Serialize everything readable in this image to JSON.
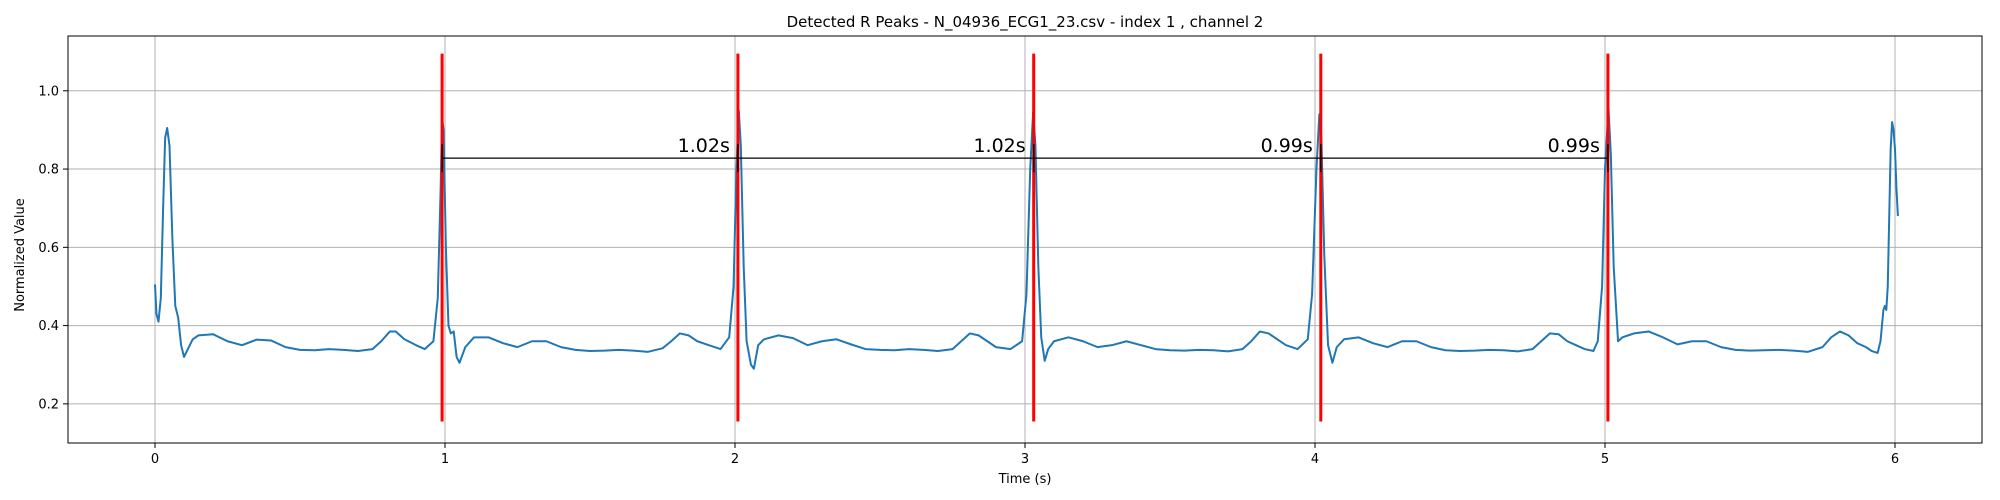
{
  "chart_data": {
    "type": "line",
    "title": "Detected R Peaks - N_04936_ECG1_23.csv - index 1 , channel 2",
    "xlabel": "Time (s)",
    "ylabel": "Normalized Value",
    "xlim": [
      -0.3,
      6.3
    ],
    "ylim": [
      0.1,
      1.14
    ],
    "xticks": [
      0,
      1,
      2,
      3,
      4,
      5,
      6
    ],
    "xtick_labels": [
      "0",
      "1",
      "2",
      "3",
      "4",
      "5",
      "6"
    ],
    "yticks": [
      0.2,
      0.4,
      0.6,
      0.8,
      1.0
    ],
    "ytick_labels": [
      "0.2",
      "0.4",
      "0.6",
      "0.8",
      "1.0"
    ],
    "grid": true,
    "colors": {
      "signal": "#1f77b4",
      "peak_marker": "#ff0000",
      "interval_line": "#000000",
      "grid": "#b0b0b0"
    },
    "r_peaks": [
      0.99,
      2.01,
      3.03,
      4.02,
      5.01
    ],
    "peak_marker_range": [
      0.155,
      1.095
    ],
    "rr_interval_y": 0.828,
    "rr_intervals": [
      {
        "start": 0.99,
        "end": 2.01,
        "label": "1.02s"
      },
      {
        "start": 2.01,
        "end": 3.03,
        "label": "1.02s"
      },
      {
        "start": 3.03,
        "end": 4.02,
        "label": "0.99s"
      },
      {
        "start": 4.02,
        "end": 5.01,
        "label": "0.99s"
      }
    ],
    "series": [
      {
        "points": [
          [
            0.0,
            0.505
          ],
          [
            0.005,
            0.43
          ],
          [
            0.012,
            0.41
          ],
          [
            0.02,
            0.47
          ],
          [
            0.028,
            0.7
          ],
          [
            0.035,
            0.88
          ],
          [
            0.042,
            0.905
          ],
          [
            0.05,
            0.86
          ],
          [
            0.06,
            0.62
          ],
          [
            0.07,
            0.45
          ],
          [
            0.08,
            0.42
          ],
          [
            0.09,
            0.35
          ],
          [
            0.1,
            0.32
          ],
          [
            0.11,
            0.335
          ],
          [
            0.13,
            0.365
          ],
          [
            0.15,
            0.375
          ],
          [
            0.2,
            0.378
          ],
          [
            0.25,
            0.36
          ],
          [
            0.3,
            0.35
          ],
          [
            0.35,
            0.364
          ],
          [
            0.4,
            0.362
          ],
          [
            0.45,
            0.345
          ],
          [
            0.5,
            0.338
          ],
          [
            0.55,
            0.337
          ],
          [
            0.6,
            0.34
          ],
          [
            0.65,
            0.338
          ],
          [
            0.7,
            0.335
          ],
          [
            0.75,
            0.34
          ],
          [
            0.78,
            0.36
          ],
          [
            0.81,
            0.385
          ],
          [
            0.83,
            0.385
          ],
          [
            0.86,
            0.365
          ],
          [
            0.9,
            0.35
          ],
          [
            0.93,
            0.34
          ],
          [
            0.96,
            0.36
          ],
          [
            0.975,
            0.47
          ],
          [
            0.985,
            0.75
          ],
          [
            0.99,
            0.93
          ],
          [
            0.995,
            0.9
          ],
          [
            1.003,
            0.6
          ],
          [
            1.012,
            0.4
          ],
          [
            1.02,
            0.38
          ],
          [
            1.03,
            0.385
          ],
          [
            1.04,
            0.32
          ],
          [
            1.05,
            0.305
          ],
          [
            1.07,
            0.345
          ],
          [
            1.1,
            0.37
          ],
          [
            1.15,
            0.37
          ],
          [
            1.2,
            0.355
          ],
          [
            1.25,
            0.345
          ],
          [
            1.3,
            0.36
          ],
          [
            1.35,
            0.36
          ],
          [
            1.4,
            0.345
          ],
          [
            1.45,
            0.338
          ],
          [
            1.5,
            0.335
          ],
          [
            1.55,
            0.336
          ],
          [
            1.6,
            0.338
          ],
          [
            1.65,
            0.336
          ],
          [
            1.7,
            0.333
          ],
          [
            1.75,
            0.342
          ],
          [
            1.78,
            0.36
          ],
          [
            1.81,
            0.38
          ],
          [
            1.84,
            0.375
          ],
          [
            1.87,
            0.36
          ],
          [
            1.91,
            0.35
          ],
          [
            1.95,
            0.34
          ],
          [
            1.98,
            0.37
          ],
          [
            1.995,
            0.5
          ],
          [
            2.005,
            0.8
          ],
          [
            2.013,
            0.95
          ],
          [
            2.02,
            0.86
          ],
          [
            2.03,
            0.55
          ],
          [
            2.04,
            0.36
          ],
          [
            2.055,
            0.3
          ],
          [
            2.065,
            0.29
          ],
          [
            2.08,
            0.35
          ],
          [
            2.1,
            0.365
          ],
          [
            2.15,
            0.375
          ],
          [
            2.2,
            0.368
          ],
          [
            2.25,
            0.35
          ],
          [
            2.3,
            0.36
          ],
          [
            2.35,
            0.365
          ],
          [
            2.4,
            0.352
          ],
          [
            2.45,
            0.34
          ],
          [
            2.5,
            0.338
          ],
          [
            2.55,
            0.337
          ],
          [
            2.6,
            0.34
          ],
          [
            2.65,
            0.338
          ],
          [
            2.7,
            0.335
          ],
          [
            2.75,
            0.34
          ],
          [
            2.78,
            0.36
          ],
          [
            2.81,
            0.38
          ],
          [
            2.84,
            0.375
          ],
          [
            2.87,
            0.36
          ],
          [
            2.9,
            0.345
          ],
          [
            2.95,
            0.34
          ],
          [
            2.99,
            0.36
          ],
          [
            3.005,
            0.48
          ],
          [
            3.018,
            0.8
          ],
          [
            3.028,
            0.945
          ],
          [
            3.036,
            0.86
          ],
          [
            3.046,
            0.55
          ],
          [
            3.056,
            0.37
          ],
          [
            3.068,
            0.31
          ],
          [
            3.08,
            0.34
          ],
          [
            3.1,
            0.36
          ],
          [
            3.15,
            0.37
          ],
          [
            3.2,
            0.36
          ],
          [
            3.25,
            0.345
          ],
          [
            3.3,
            0.35
          ],
          [
            3.35,
            0.36
          ],
          [
            3.4,
            0.35
          ],
          [
            3.45,
            0.34
          ],
          [
            3.5,
            0.337
          ],
          [
            3.55,
            0.336
          ],
          [
            3.6,
            0.338
          ],
          [
            3.65,
            0.337
          ],
          [
            3.7,
            0.334
          ],
          [
            3.75,
            0.34
          ],
          [
            3.78,
            0.36
          ],
          [
            3.81,
            0.385
          ],
          [
            3.84,
            0.38
          ],
          [
            3.87,
            0.365
          ],
          [
            3.9,
            0.35
          ],
          [
            3.94,
            0.34
          ],
          [
            3.975,
            0.365
          ],
          [
            3.99,
            0.48
          ],
          [
            4.005,
            0.8
          ],
          [
            4.015,
            0.94
          ],
          [
            4.022,
            0.88
          ],
          [
            4.032,
            0.58
          ],
          [
            4.045,
            0.35
          ],
          [
            4.06,
            0.305
          ],
          [
            4.075,
            0.345
          ],
          [
            4.1,
            0.365
          ],
          [
            4.15,
            0.37
          ],
          [
            4.2,
            0.355
          ],
          [
            4.25,
            0.345
          ],
          [
            4.3,
            0.36
          ],
          [
            4.35,
            0.36
          ],
          [
            4.4,
            0.345
          ],
          [
            4.45,
            0.337
          ],
          [
            4.5,
            0.335
          ],
          [
            4.55,
            0.336
          ],
          [
            4.6,
            0.338
          ],
          [
            4.65,
            0.337
          ],
          [
            4.7,
            0.334
          ],
          [
            4.75,
            0.34
          ],
          [
            4.78,
            0.36
          ],
          [
            4.81,
            0.38
          ],
          [
            4.84,
            0.378
          ],
          [
            4.87,
            0.36
          ],
          [
            4.9,
            0.35
          ],
          [
            4.93,
            0.34
          ],
          [
            4.96,
            0.335
          ],
          [
            4.975,
            0.36
          ],
          [
            4.99,
            0.5
          ],
          [
            5.0,
            0.8
          ],
          [
            5.012,
            0.955
          ],
          [
            5.02,
            0.84
          ],
          [
            5.03,
            0.55
          ],
          [
            5.045,
            0.36
          ],
          [
            5.06,
            0.37
          ],
          [
            5.08,
            0.375
          ],
          [
            5.1,
            0.38
          ],
          [
            5.15,
            0.385
          ],
          [
            5.2,
            0.37
          ],
          [
            5.25,
            0.352
          ],
          [
            5.3,
            0.36
          ],
          [
            5.35,
            0.36
          ],
          [
            5.4,
            0.345
          ],
          [
            5.45,
            0.338
          ],
          [
            5.5,
            0.336
          ],
          [
            5.55,
            0.337
          ],
          [
            5.6,
            0.338
          ],
          [
            5.65,
            0.336
          ],
          [
            5.7,
            0.333
          ],
          [
            5.75,
            0.345
          ],
          [
            5.78,
            0.37
          ],
          [
            5.81,
            0.385
          ],
          [
            5.84,
            0.375
          ],
          [
            5.87,
            0.355
          ],
          [
            5.9,
            0.345
          ],
          [
            5.92,
            0.335
          ],
          [
            5.94,
            0.33
          ],
          [
            5.95,
            0.36
          ],
          [
            5.96,
            0.44
          ],
          [
            5.965,
            0.45
          ],
          [
            5.97,
            0.44
          ],
          [
            5.975,
            0.5
          ],
          [
            5.985,
            0.85
          ],
          [
            5.99,
            0.92
          ],
          [
            5.995,
            0.9
          ],
          [
            6.0,
            0.85
          ],
          [
            6.005,
            0.75
          ],
          [
            6.01,
            0.68
          ]
        ]
      }
    ]
  }
}
